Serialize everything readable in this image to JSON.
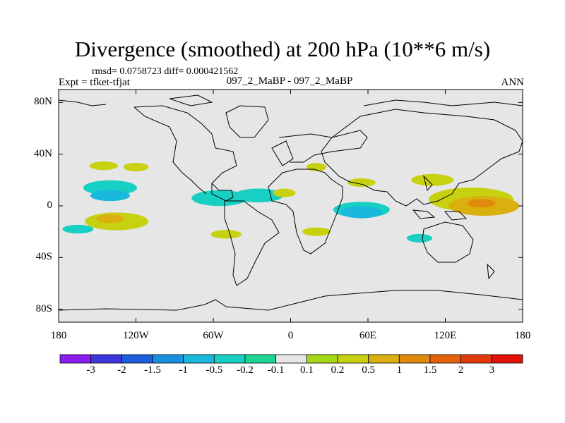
{
  "title": "Divergence (smoothed) at 200 hPa (10**6 m/s)",
  "stats": "rmsd= 0.0758723 diff= 0.000421562",
  "expt": "Expt = tfket-tfjat",
  "case_label": "097_2_MaBP - 097_2_MaBP",
  "season": "ANN",
  "chart_data": {
    "type": "heatmap",
    "title": "Divergence (smoothed) at 200 hPa (10**6 m/s)",
    "projection": "cylindrical equidistant",
    "x_ticks": [
      -180,
      -120,
      -60,
      0,
      60,
      120,
      180
    ],
    "x_tick_labels": [
      "180",
      "120W",
      "60W",
      "0",
      "60E",
      "120E",
      "180"
    ],
    "y_ticks": [
      80,
      40,
      0,
      -40,
      -80
    ],
    "y_tick_labels": [
      "80N",
      "40N",
      "0",
      "40S",
      "80S"
    ],
    "xlim": [
      -180,
      180
    ],
    "ylim": [
      -90,
      90
    ],
    "colorbar": {
      "levels": [
        "-3",
        "-2",
        "-1.5",
        "-1",
        "-0.5",
        "-0.2",
        "-0.1",
        "0.1",
        "0.2",
        "0.5",
        "1",
        "1.5",
        "2",
        "3"
      ],
      "colors": [
        "#8a1df0",
        "#3d35dc",
        "#1f5fdd",
        "#1890e0",
        "#18b9dd",
        "#17cfc3",
        "#1ad690",
        "#e6e6e6",
        "#a4d814",
        "#c8d110",
        "#d9b00e",
        "#e08a0d",
        "#e4620c",
        "#e23a0a",
        "#e0120a"
      ]
    },
    "features": [
      {
        "lon": -140,
        "lat": 14,
        "level": "-0.2"
      },
      {
        "lon": -140,
        "lat": 8,
        "level": "-0.5"
      },
      {
        "lon": -135,
        "lat": -12,
        "level": "0.2"
      },
      {
        "lon": -140,
        "lat": -10,
        "level": "0.5"
      },
      {
        "lon": -165,
        "lat": -18,
        "level": "-0.2"
      },
      {
        "lon": -120,
        "lat": 30,
        "level": "0.2"
      },
      {
        "lon": -145,
        "lat": 31,
        "level": "0.2"
      },
      {
        "lon": -55,
        "lat": 6,
        "level": "-0.2"
      },
      {
        "lon": -25,
        "lat": 8,
        "level": "-0.2"
      },
      {
        "lon": -5,
        "lat": 10,
        "level": "0.2"
      },
      {
        "lon": -50,
        "lat": -22,
        "level": "0.2"
      },
      {
        "lon": 20,
        "lat": -20,
        "level": "0.2"
      },
      {
        "lon": 20,
        "lat": 30,
        "level": "0.2"
      },
      {
        "lon": 55,
        "lat": 18,
        "level": "0.2"
      },
      {
        "lon": 55,
        "lat": -3,
        "level": "-0.2"
      },
      {
        "lon": 55,
        "lat": -5,
        "level": "-0.5"
      },
      {
        "lon": 110,
        "lat": 20,
        "level": "0.2"
      },
      {
        "lon": 140,
        "lat": 5,
        "level": "0.2"
      },
      {
        "lon": 150,
        "lat": 0,
        "level": "0.5"
      },
      {
        "lon": 148,
        "lat": 2,
        "level": "1"
      },
      {
        "lon": 100,
        "lat": -25,
        "level": "-0.2"
      }
    ]
  }
}
